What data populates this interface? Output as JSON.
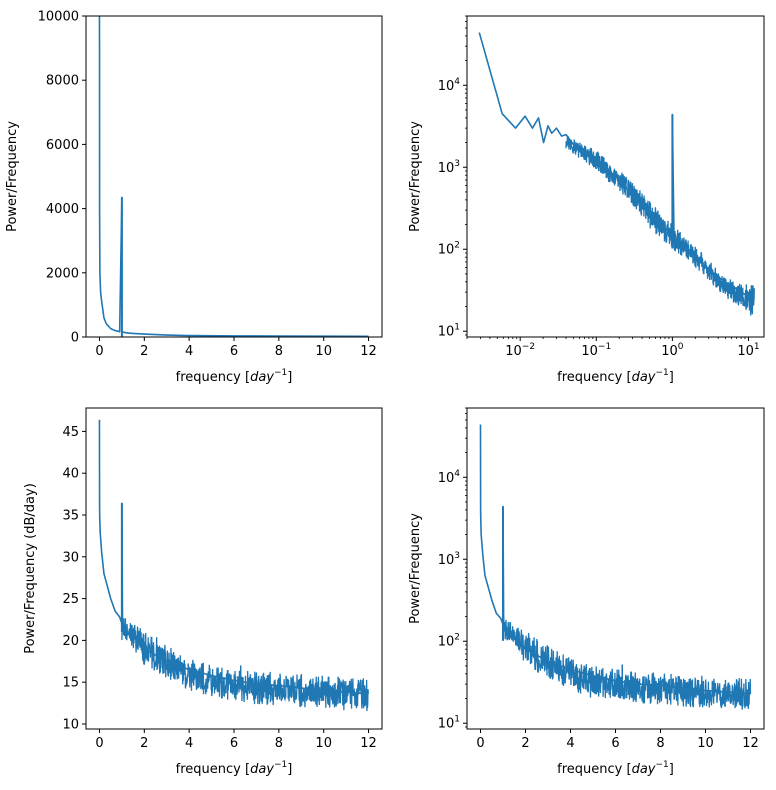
{
  "chart_data": [
    {
      "type": "line",
      "xscale": "linear",
      "yscale": "linear",
      "xlabel_prefix": "frequency [",
      "xlabel_math": "day",
      "xlabel_exp": "−1",
      "xlabel_suffix": "]",
      "ylabel": "Power/Frequency",
      "xlim": [
        -0.6,
        12.6
      ],
      "ylim": [
        0,
        10000
      ],
      "xticks": [
        0,
        2,
        4,
        6,
        8,
        10,
        12
      ],
      "xticklabels": [
        "0",
        "2",
        "4",
        "6",
        "8",
        "10",
        "12"
      ],
      "yticks": [
        0,
        2000,
        4000,
        6000,
        8000,
        10000
      ],
      "yticklabels": [
        "0",
        "2000",
        "4000",
        "6000",
        "8000",
        "10000"
      ],
      "series": [
        {
          "color": "#1f77b4",
          "x": [
            0.0,
            0.003,
            0.006,
            0.01,
            0.02,
            0.05,
            0.1,
            0.2,
            0.3,
            0.5,
            0.7,
            0.9,
            1.0,
            1.0,
            1.02,
            1.2,
            1.5,
            2.0,
            3.0,
            4.0,
            6.0,
            8.0,
            10.0,
            12.0
          ],
          "y": [
            10000,
            9000,
            4000,
            3300,
            2000,
            1400,
            1100,
            600,
            420,
            260,
            200,
            165,
            4350,
            160,
            155,
            130,
            110,
            90,
            60,
            45,
            35,
            30,
            25,
            22
          ]
        }
      ],
      "spike": {
        "x": 1.0,
        "y": 4350
      }
    },
    {
      "type": "line",
      "xscale": "log",
      "yscale": "log",
      "xlabel_prefix": "frequency [",
      "xlabel_math": "day",
      "xlabel_exp": "−1",
      "xlabel_suffix": "]",
      "ylabel": "Power/Frequency",
      "xlim": [
        0.002,
        16
      ],
      "ylim": [
        8.5,
        70000
      ],
      "xticks": [
        0.01,
        0.1,
        1,
        10
      ],
      "xtick_base": [
        "10",
        "10",
        "10",
        "10"
      ],
      "xtick_exp": [
        "−2",
        "−1",
        "0",
        "1"
      ],
      "yticks": [
        10,
        100,
        1000,
        10000
      ],
      "ytick_base": [
        "10",
        "10",
        "10",
        "10"
      ],
      "ytick_exp": [
        "1",
        "2",
        "3",
        "4"
      ],
      "series": [
        {
          "color": "#1f77b4",
          "x": [
            0.0029,
            0.0058,
            0.0087,
            0.0116,
            0.0145,
            0.0174,
            0.0203,
            0.0232,
            0.026,
            0.03,
            0.035,
            0.04,
            0.05,
            0.06,
            0.08,
            0.1,
            0.15,
            0.2,
            0.3,
            0.5,
            0.7,
            1.0,
            1.0,
            1.05,
            1.5,
            2,
            3,
            5,
            8,
            12
          ],
          "y": [
            44000,
            4500,
            3000,
            4200,
            3000,
            4000,
            2000,
            3200,
            2600,
            3000,
            2400,
            2500,
            1900,
            1800,
            1500,
            1300,
            900,
            700,
            450,
            280,
            200,
            150,
            4400,
            140,
            100,
            80,
            55,
            40,
            30,
            24
          ]
        }
      ],
      "noise_band": {
        "x": [
          0.04,
          0.1,
          0.2,
          0.5,
          1.0,
          2,
          5,
          12
        ],
        "ylow": [
          1700,
          900,
          500,
          180,
          100,
          60,
          25,
          14
        ],
        "yhigh": [
          2500,
          1600,
          950,
          400,
          200,
          110,
          45,
          36
        ]
      },
      "spike": {
        "x": 1.0,
        "y": 4400
      }
    },
    {
      "type": "line",
      "xscale": "linear",
      "yscale": "linear",
      "xlabel_prefix": "frequency [",
      "xlabel_math": "day",
      "xlabel_exp": "−1",
      "xlabel_suffix": "]",
      "ylabel": "Power/Frequency (dB/day)",
      "xlim": [
        -0.6,
        12.6
      ],
      "ylim": [
        9.4,
        47.8
      ],
      "xticks": [
        0,
        2,
        4,
        6,
        8,
        10,
        12
      ],
      "xticklabels": [
        "0",
        "2",
        "4",
        "6",
        "8",
        "10",
        "12"
      ],
      "yticks": [
        10,
        15,
        20,
        25,
        30,
        35,
        40,
        45
      ],
      "yticklabels": [
        "10",
        "15",
        "20",
        "25",
        "30",
        "35",
        "40",
        "45"
      ],
      "series": [
        {
          "color": "#1f77b4",
          "x": [
            0.0,
            0.003,
            0.006,
            0.01,
            0.03,
            0.1,
            0.2,
            0.35,
            0.5,
            0.7,
            0.9,
            1.0,
            1.0,
            1.03,
            1.5,
            2,
            3,
            4,
            5,
            6,
            7,
            8,
            9,
            10,
            11,
            12
          ],
          "y": [
            46.4,
            39.5,
            36.0,
            35.0,
            33.0,
            30.5,
            28.0,
            26.5,
            25.0,
            23.5,
            22.8,
            22.0,
            36.4,
            21.5,
            20.5,
            19.0,
            17.5,
            16.5,
            15.8,
            15.2,
            14.8,
            14.6,
            14.3,
            14.0,
            13.8,
            13.6
          ]
        }
      ],
      "noise_band": {
        "x": [
          1.0,
          1.5,
          2,
          3,
          4,
          5,
          6,
          7,
          8,
          9,
          10,
          11,
          12
        ],
        "ylow": [
          20.0,
          19.0,
          17.0,
          15.5,
          14.0,
          13.0,
          12.8,
          12.3,
          12.2,
          12.0,
          11.8,
          11.6,
          11.5
        ],
        "yhigh": [
          23.0,
          22.0,
          21.5,
          19.5,
          18.0,
          17.0,
          16.6,
          16.3,
          16.2,
          16.0,
          15.8,
          15.6,
          15.5
        ]
      },
      "spike": {
        "x": 1.0,
        "y": 36.4
      },
      "small_spike": {
        "x": 6.3,
        "y": 17.0
      }
    },
    {
      "type": "line",
      "xscale": "linear",
      "yscale": "log",
      "xlabel_prefix": "frequency [",
      "xlabel_math": "day",
      "xlabel_exp": "−1",
      "xlabel_suffix": "]",
      "ylabel": "Power/Frequency",
      "xlim": [
        -0.6,
        12.6
      ],
      "ylim": [
        8.5,
        70000
      ],
      "xticks": [
        0,
        2,
        4,
        6,
        8,
        10,
        12
      ],
      "xticklabels": [
        "0",
        "2",
        "4",
        "6",
        "8",
        "10",
        "12"
      ],
      "yticks": [
        10,
        100,
        1000,
        10000
      ],
      "ytick_base": [
        "10",
        "10",
        "10",
        "10"
      ],
      "ytick_exp": [
        "1",
        "2",
        "3",
        "4"
      ],
      "series": [
        {
          "color": "#1f77b4",
          "x": [
            0.0,
            0.003,
            0.006,
            0.01,
            0.03,
            0.1,
            0.2,
            0.35,
            0.5,
            0.7,
            0.9,
            1.0,
            1.0,
            1.03,
            1.5,
            2,
            3,
            4,
            5,
            6,
            7,
            8,
            9,
            10,
            11,
            12
          ],
          "y": [
            44000,
            9000,
            4000,
            3200,
            2000,
            1150,
            630,
            450,
            320,
            220,
            190,
            160,
            4400,
            150,
            110,
            80,
            57,
            45,
            38,
            33,
            30,
            29,
            27,
            25,
            24,
            23
          ]
        }
      ],
      "noise_band": {
        "x": [
          1.0,
          1.5,
          2,
          3,
          4,
          5,
          6,
          7,
          8,
          9,
          10,
          11,
          12
        ],
        "ylow": [
          100,
          80,
          50,
          35,
          25,
          20,
          19,
          17,
          16.5,
          16,
          15,
          14.5,
          14
        ],
        "yhigh": [
          200,
          160,
          140,
          90,
          63,
          50,
          46,
          43,
          42,
          40,
          38,
          36,
          35
        ]
      },
      "spike": {
        "x": 1.0,
        "y": 4400
      },
      "small_spike": {
        "x": 6.3,
        "y": 52
      }
    }
  ]
}
